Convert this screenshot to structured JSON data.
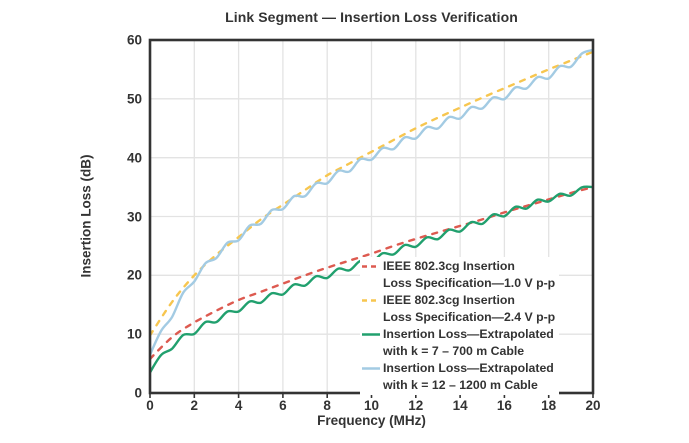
{
  "chart_data": {
    "type": "line",
    "title": "Link Segment — Insertion Loss Verification",
    "xlabel": "Frequency (MHz)",
    "ylabel": "Insertion Loss (dB)",
    "xlim": [
      0,
      20
    ],
    "ylim": [
      0,
      60
    ],
    "x_ticks": [
      0,
      2,
      4,
      6,
      8,
      10,
      12,
      14,
      16,
      18,
      20
    ],
    "y_ticks": [
      0,
      10,
      20,
      30,
      40,
      50,
      60
    ],
    "grid": true,
    "legend_position": "inside-bottom-right",
    "series": [
      {
        "name": "IEEE 802.3cg Insertion Loss Specification—1.0 V p-p",
        "color": "#dd5a50",
        "style": "dashed",
        "x_start": 0,
        "x_step": 1,
        "values": [
          5.8,
          9.5,
          12.0,
          14.0,
          15.8,
          17.2,
          18.6,
          20.0,
          21.3,
          22.5,
          23.7,
          25.0,
          26.2,
          27.3,
          28.4,
          29.5,
          30.7,
          31.8,
          32.9,
          34.0,
          35.0
        ]
      },
      {
        "name": "IEEE 802.3cg Insertion Loss Specification—2.4 V p-p",
        "color": "#f7c64f",
        "style": "dashed",
        "x_start": 0,
        "x_step": 1,
        "values": [
          9.8,
          15.5,
          20.0,
          23.5,
          26.5,
          29.5,
          32.0,
          34.5,
          37.0,
          39.0,
          41.0,
          43.0,
          45.0,
          46.8,
          48.5,
          50.2,
          51.8,
          53.4,
          55.0,
          56.5,
          58.0
        ]
      },
      {
        "name": "Insertion Loss—Extrapolated with k = 7 – 700 m Cable",
        "color": "#21a06e",
        "style": "solid",
        "x_start": 0,
        "x_step": 0.5,
        "values": [
          3.5,
          6.45,
          7.55,
          9.85,
          10.05,
          12.05,
          12.05,
          13.85,
          13.85,
          15.55,
          15.35,
          16.95,
          16.75,
          18.45,
          18.25,
          19.85,
          19.55,
          21.15,
          20.85,
          22.45,
          22.15,
          23.75,
          23.55,
          25.15,
          24.85,
          26.45,
          26.15,
          27.75,
          27.45,
          29.05,
          28.75,
          30.35,
          30.05,
          31.65,
          31.35,
          32.85,
          32.55,
          33.85,
          33.55,
          34.95,
          35.0
        ]
      },
      {
        "name": "Insertion Loss—Extrapolated with k = 12 – 1200 m Cable",
        "color": "#a3cbe3",
        "style": "solid",
        "x_start": 0,
        "x_step": 0.5,
        "values": [
          6.5,
          10.55,
          12.95,
          17.05,
          18.95,
          22.05,
          22.95,
          25.55,
          25.95,
          28.45,
          28.75,
          31.1,
          31.25,
          33.45,
          33.45,
          35.65,
          35.65,
          37.75,
          37.65,
          39.75,
          39.65,
          41.65,
          41.45,
          43.45,
          43.25,
          45.2,
          44.95,
          46.9,
          46.65,
          48.6,
          48.35,
          50.25,
          49.95,
          51.95,
          51.75,
          53.7,
          53.45,
          55.55,
          55.45,
          57.7,
          58.3
        ]
      }
    ],
    "legend": [
      {
        "series": 0,
        "lines": [
          "IEEE 802.3cg Insertion",
          "Loss Specification—1.0 V p-p"
        ]
      },
      {
        "series": 1,
        "lines": [
          "IEEE 802.3cg Insertion",
          "Loss Specification—2.4 V p-p"
        ]
      },
      {
        "series": 2,
        "lines": [
          "Insertion Loss—Extrapolated",
          "with k = 7 – 700 m Cable"
        ]
      },
      {
        "series": 3,
        "lines": [
          "Insertion Loss—Extrapolated",
          "with k = 12 – 1200 m Cable"
        ]
      }
    ],
    "draw_order": [
      1,
      3,
      0,
      2
    ]
  },
  "colors": {
    "text": "#333333",
    "grid": "#e3e3e3",
    "frame": "#333333",
    "background": "#ffffff"
  }
}
